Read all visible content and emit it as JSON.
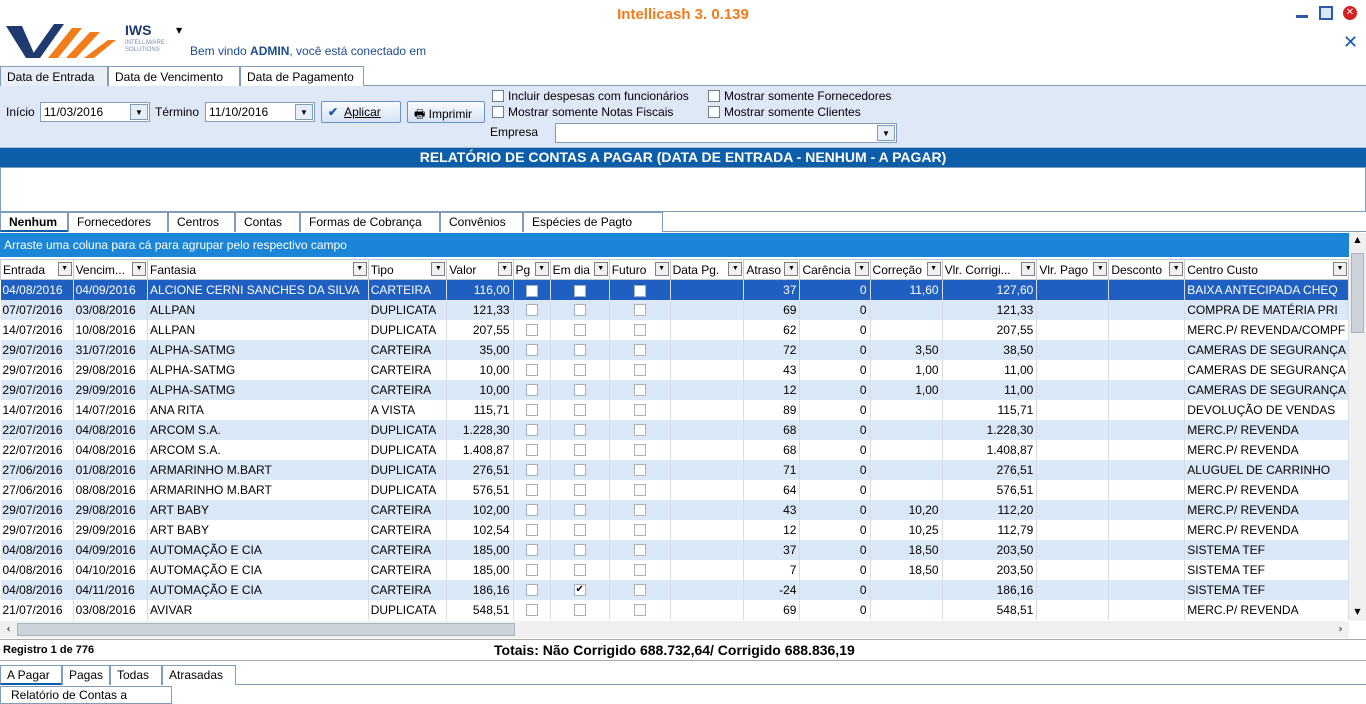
{
  "header": {
    "app_title": "Intellicash 3. 0.139",
    "logo_text": "IWS",
    "logo_subtitle_1": "INTELLIWARE",
    "logo_subtitle_2": "SOLUTIONS",
    "welcome_prefix": "Bem vindo ",
    "welcome_user": "ADMIN",
    "welcome_suffix": ", você está conectado em"
  },
  "top_tabs": [
    "Data de Entrada",
    "Data de Vencimento",
    "Data de Pagamento"
  ],
  "filters": {
    "inicio_label": "Início",
    "inicio_value": "11/03/2016",
    "termino_label": "Término",
    "termino_value": "11/10/2016",
    "aplicar_label": "Aplicar",
    "imprimir_label": "Imprimir",
    "options": [
      "Incluir despesas com funcionários",
      "Mostrar somente Notas Fiscais",
      "Mostrar somente Fornecedores",
      "Mostrar somente Clientes"
    ],
    "empresa_label": "Empresa",
    "empresa_value": ""
  },
  "report_title": "RELATÓRIO DE CONTAS A PAGAR (DATA DE ENTRADA - NENHUM - A PAGAR)",
  "group_tabs": [
    "Nenhum",
    "Fornecedores",
    "Centros",
    "Contas",
    "Formas de Cobrança",
    "Convênios",
    "Espécies de Pagto"
  ],
  "drag_hint": "Arraste uma coluna para cá para agrupar pelo respectivo campo",
  "columns": [
    "Entrada",
    "Vencim...",
    "Fantasia",
    "Tipo",
    "Valor",
    "Pg",
    "Em dia",
    "Futuro",
    "Data Pg.",
    "Atraso",
    "Carência",
    "Correção",
    "Vlr. Corrigi...",
    "Vlr. Pago",
    "Desconto",
    "Centro Custo"
  ],
  "rows": [
    {
      "entrada": "04/08/2016",
      "venc": "04/09/2016",
      "fantasia": "ALCIONE CERNI SANCHES DA SILVA",
      "tipo": "CARTEIRA",
      "valor": "116,00",
      "emdia": false,
      "datapg": "",
      "atraso": "37",
      "carencia": "0",
      "correcao": "11,60",
      "corrigido": "127,60",
      "centro": "BAIXA ANTECIPADA CHEQ"
    },
    {
      "entrada": "07/07/2016",
      "venc": "03/08/2016",
      "fantasia": "ALLPAN",
      "tipo": "DUPLICATA",
      "valor": "121,33",
      "emdia": false,
      "datapg": "",
      "atraso": "69",
      "carencia": "0",
      "correcao": "",
      "corrigido": "121,33",
      "centro": "COMPRA DE MATÉRIA PRI"
    },
    {
      "entrada": "14/07/2016",
      "venc": "10/08/2016",
      "fantasia": "ALLPAN",
      "tipo": "DUPLICATA",
      "valor": "207,55",
      "emdia": false,
      "datapg": "",
      "atraso": "62",
      "carencia": "0",
      "correcao": "",
      "corrigido": "207,55",
      "centro": "MERC.P/ REVENDA/COMPF"
    },
    {
      "entrada": "29/07/2016",
      "venc": "31/07/2016",
      "fantasia": "ALPHA-SATMG",
      "tipo": "CARTEIRA",
      "valor": "35,00",
      "emdia": false,
      "datapg": "",
      "atraso": "72",
      "carencia": "0",
      "correcao": "3,50",
      "corrigido": "38,50",
      "centro": "CAMERAS DE SEGURANÇA"
    },
    {
      "entrada": "29/07/2016",
      "venc": "29/08/2016",
      "fantasia": "ALPHA-SATMG",
      "tipo": "CARTEIRA",
      "valor": "10,00",
      "emdia": false,
      "datapg": "",
      "atraso": "43",
      "carencia": "0",
      "correcao": "1,00",
      "corrigido": "11,00",
      "centro": "CAMERAS DE SEGURANÇA"
    },
    {
      "entrada": "29/07/2016",
      "venc": "29/09/2016",
      "fantasia": "ALPHA-SATMG",
      "tipo": "CARTEIRA",
      "valor": "10,00",
      "emdia": false,
      "datapg": "",
      "atraso": "12",
      "carencia": "0",
      "correcao": "1,00",
      "corrigido": "11,00",
      "centro": "CAMERAS DE SEGURANÇA"
    },
    {
      "entrada": "14/07/2016",
      "venc": "14/07/2016",
      "fantasia": "ANA RITA",
      "tipo": "A VISTA",
      "valor": "115,71",
      "emdia": false,
      "datapg": "",
      "atraso": "89",
      "carencia": "0",
      "correcao": "",
      "corrigido": "115,71",
      "centro": "DEVOLUÇÃO DE VENDAS"
    },
    {
      "entrada": "22/07/2016",
      "venc": "04/08/2016",
      "fantasia": "ARCOM S.A.",
      "tipo": "DUPLICATA",
      "valor": "1.228,30",
      "emdia": false,
      "datapg": "",
      "atraso": "68",
      "carencia": "0",
      "correcao": "",
      "corrigido": "1.228,30",
      "centro": "MERC.P/ REVENDA"
    },
    {
      "entrada": "22/07/2016",
      "venc": "04/08/2016",
      "fantasia": "ARCOM S.A.",
      "tipo": "DUPLICATA",
      "valor": "1.408,87",
      "emdia": false,
      "datapg": "",
      "atraso": "68",
      "carencia": "0",
      "correcao": "",
      "corrigido": "1.408,87",
      "centro": "MERC.P/ REVENDA"
    },
    {
      "entrada": "27/06/2016",
      "venc": "01/08/2016",
      "fantasia": "ARMARINHO M.BART",
      "tipo": "DUPLICATA",
      "valor": "276,51",
      "emdia": false,
      "datapg": "",
      "atraso": "71",
      "carencia": "0",
      "correcao": "",
      "corrigido": "276,51",
      "centro": "ALUGUEL DE CARRINHO"
    },
    {
      "entrada": "27/06/2016",
      "venc": "08/08/2016",
      "fantasia": "ARMARINHO M.BART",
      "tipo": "DUPLICATA",
      "valor": "576,51",
      "emdia": false,
      "datapg": "",
      "atraso": "64",
      "carencia": "0",
      "correcao": "",
      "corrigido": "576,51",
      "centro": "MERC.P/ REVENDA"
    },
    {
      "entrada": "29/07/2016",
      "venc": "29/08/2016",
      "fantasia": "ART BABY",
      "tipo": "CARTEIRA",
      "valor": "102,00",
      "emdia": false,
      "datapg": "",
      "atraso": "43",
      "carencia": "0",
      "correcao": "10,20",
      "corrigido": "112,20",
      "centro": "MERC.P/ REVENDA"
    },
    {
      "entrada": "29/07/2016",
      "venc": "29/09/2016",
      "fantasia": "ART BABY",
      "tipo": "CARTEIRA",
      "valor": "102,54",
      "emdia": false,
      "datapg": "",
      "atraso": "12",
      "carencia": "0",
      "correcao": "10,25",
      "corrigido": "112,79",
      "centro": "MERC.P/ REVENDA"
    },
    {
      "entrada": "04/08/2016",
      "venc": "04/09/2016",
      "fantasia": "AUTOMAÇÃO E CIA",
      "tipo": "CARTEIRA",
      "valor": "185,00",
      "emdia": false,
      "datapg": "",
      "atraso": "37",
      "carencia": "0",
      "correcao": "18,50",
      "corrigido": "203,50",
      "centro": "SISTEMA TEF"
    },
    {
      "entrada": "04/08/2016",
      "venc": "04/10/2016",
      "fantasia": "AUTOMAÇÃO E CIA",
      "tipo": "CARTEIRA",
      "valor": "185,00",
      "emdia": false,
      "datapg": "",
      "atraso": "7",
      "carencia": "0",
      "correcao": "18,50",
      "corrigido": "203,50",
      "centro": "SISTEMA TEF"
    },
    {
      "entrada": "04/08/2016",
      "venc": "04/11/2016",
      "fantasia": "AUTOMAÇÃO E CIA",
      "tipo": "CARTEIRA",
      "valor": "186,16",
      "emdia": true,
      "datapg": "",
      "atraso": "-24",
      "carencia": "0",
      "correcao": "",
      "corrigido": "186,16",
      "centro": "SISTEMA TEF"
    },
    {
      "entrada": "21/07/2016",
      "venc": "03/08/2016",
      "fantasia": "AVIVAR",
      "tipo": "DUPLICATA",
      "valor": "548,51",
      "emdia": false,
      "datapg": "",
      "atraso": "69",
      "carencia": "0",
      "correcao": "",
      "corrigido": "548,51",
      "centro": "MERC.P/ REVENDA"
    }
  ],
  "status": {
    "registro": "Registro 1 de 776",
    "totais": "Totais: Não Corrigido 688.732,64/ Corrigido  688.836,19"
  },
  "bottom_tabs": [
    "A Pagar",
    "Pagas",
    "Todas",
    "Atrasadas"
  ],
  "report_tab": "Relatório de Contas a Pagar",
  "colors": {
    "title_bar": "#0d5ea8",
    "drag_area": "#1b86d8",
    "selected_row": "#1f5fc2",
    "alt_row": "#dbe8f7",
    "app_title": "#f07c1a"
  }
}
